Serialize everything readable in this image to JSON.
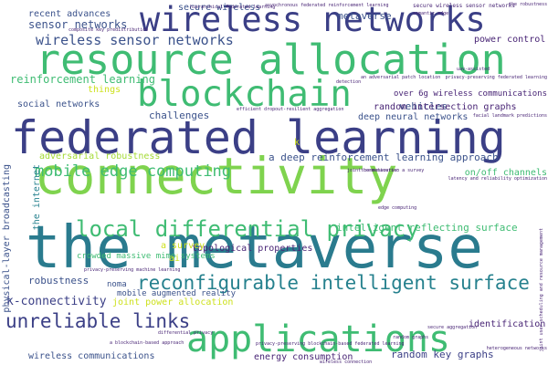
{
  "palette": {
    "navy": "#3b3f86",
    "indigo": "#482475",
    "blue": "#3b528b",
    "teal": "#2a7b8e",
    "cyan": "#26818e",
    "green": "#3fbc73",
    "lime": "#7fd34e",
    "yellow_green": "#a5db36",
    "yellow": "#cde11d",
    "purple": "#440154"
  },
  "words": [
    {
      "text": "connectivity",
      "color": "lime"
    },
    {
      "text": "the metaverse",
      "color": "teal"
    },
    {
      "text": "federated learning",
      "color": "navy"
    },
    {
      "text": "resource allocation",
      "color": "green"
    },
    {
      "text": "wireless networks",
      "color": "navy"
    },
    {
      "text": "blockchain",
      "color": "green"
    },
    {
      "text": "applications",
      "color": "green"
    },
    {
      "text": "local differential privacy",
      "color": "green"
    },
    {
      "text": "reconfigurable intelligent surface",
      "color": "cyan"
    },
    {
      "text": "unreliable links",
      "color": "navy"
    },
    {
      "text": "mobile edge computing",
      "color": "green"
    },
    {
      "text": "wireless sensor networks",
      "color": "blue"
    },
    {
      "text": "sensor networks",
      "color": "blue"
    },
    {
      "text": "metaverse",
      "color": "blue"
    },
    {
      "text": "secure wireless",
      "color": "blue"
    },
    {
      "text": "recent advances",
      "color": "blue"
    },
    {
      "text": "reinforcement learning",
      "color": "green"
    },
    {
      "text": "social networks",
      "color": "blue"
    },
    {
      "text": "things",
      "color": "yellow"
    },
    {
      "text": "challenges",
      "color": "blue"
    },
    {
      "text": "vehicles",
      "color": "blue"
    },
    {
      "text": "over 6g wireless communications",
      "color": "indigo"
    },
    {
      "text": "random intersection graphs",
      "color": "indigo"
    },
    {
      "text": "deep neural networks",
      "color": "blue"
    },
    {
      "text": "power control",
      "color": "indigo"
    },
    {
      "text": "a deep reinforcement learning approach",
      "color": "blue"
    },
    {
      "text": "adversarial robustness",
      "color": "yellow_green"
    },
    {
      "text": "on/off channels",
      "color": "green"
    },
    {
      "text": "topological properties",
      "color": "indigo"
    },
    {
      "text": "a survey",
      "color": "yellow"
    },
    {
      "text": "crowded massive mimo systems",
      "color": "green"
    },
    {
      "text": "intelligent reflecting surface",
      "color": "green"
    },
    {
      "text": "robustness",
      "color": "blue"
    },
    {
      "text": "noma",
      "color": "blue"
    },
    {
      "text": "mobile augmented reality",
      "color": "blue"
    },
    {
      "text": "joint power allocation",
      "color": "yellow"
    },
    {
      "text": "k-connectivity",
      "color": "navy"
    },
    {
      "text": "wireless communications",
      "color": "blue"
    },
    {
      "text": "energy consumption",
      "color": "indigo"
    },
    {
      "text": "random key graphs",
      "color": "navy"
    },
    {
      "text": "identification",
      "color": "indigo"
    },
    {
      "text": "ai",
      "color": "yellow"
    },
    {
      "text": "k",
      "color": "yellow"
    },
    {
      "text": "the internet",
      "color": "cyan"
    },
    {
      "text": "physical-layer broadcasting",
      "color": "blue"
    },
    {
      "text": "hierarchical federated learning",
      "color": "indigo"
    },
    {
      "text": "asynchronous federated reinforcement learning",
      "color": "indigo"
    },
    {
      "text": "secure wireless sensor networks",
      "color": "indigo"
    },
    {
      "text": "the robustness",
      "color": "indigo"
    },
    {
      "text": "semantic edge",
      "color": "indigo"
    },
    {
      "text": "composite key predistribution",
      "color": "indigo"
    },
    {
      "text": "uav-assisted",
      "color": "indigo"
    },
    {
      "text": "privacy-preserving federated learning",
      "color": "indigo"
    },
    {
      "text": "an adversarial patch location",
      "color": "indigo"
    },
    {
      "text": "differential privacy",
      "color": "indigo"
    },
    {
      "text": "random graphs",
      "color": "indigo"
    },
    {
      "text": "joint user scheduling and resource management",
      "color": "indigo"
    },
    {
      "text": "privacy-preserving blockchain-based federated learning",
      "color": "indigo"
    },
    {
      "text": "privacy-preserving machine learning",
      "color": "indigo"
    },
    {
      "text": "wireless connection",
      "color": "indigo"
    },
    {
      "text": "efficient dropout-resilient aggregation",
      "color": "indigo"
    },
    {
      "text": "detection",
      "color": "indigo"
    },
    {
      "text": "joint communication",
      "color": "indigo"
    },
    {
      "text": "heterogeneous networks",
      "color": "indigo"
    },
    {
      "text": "latency and reliability optimization",
      "color": "indigo"
    },
    {
      "text": "facial landmark predictions",
      "color": "indigo"
    },
    {
      "text": "a blockchain-based approach",
      "color": "indigo"
    },
    {
      "text": "edge computing",
      "color": "indigo"
    },
    {
      "text": "secure aggregation",
      "color": "indigo"
    },
    {
      "text": "the metaverse: a survey",
      "color": "indigo"
    }
  ]
}
